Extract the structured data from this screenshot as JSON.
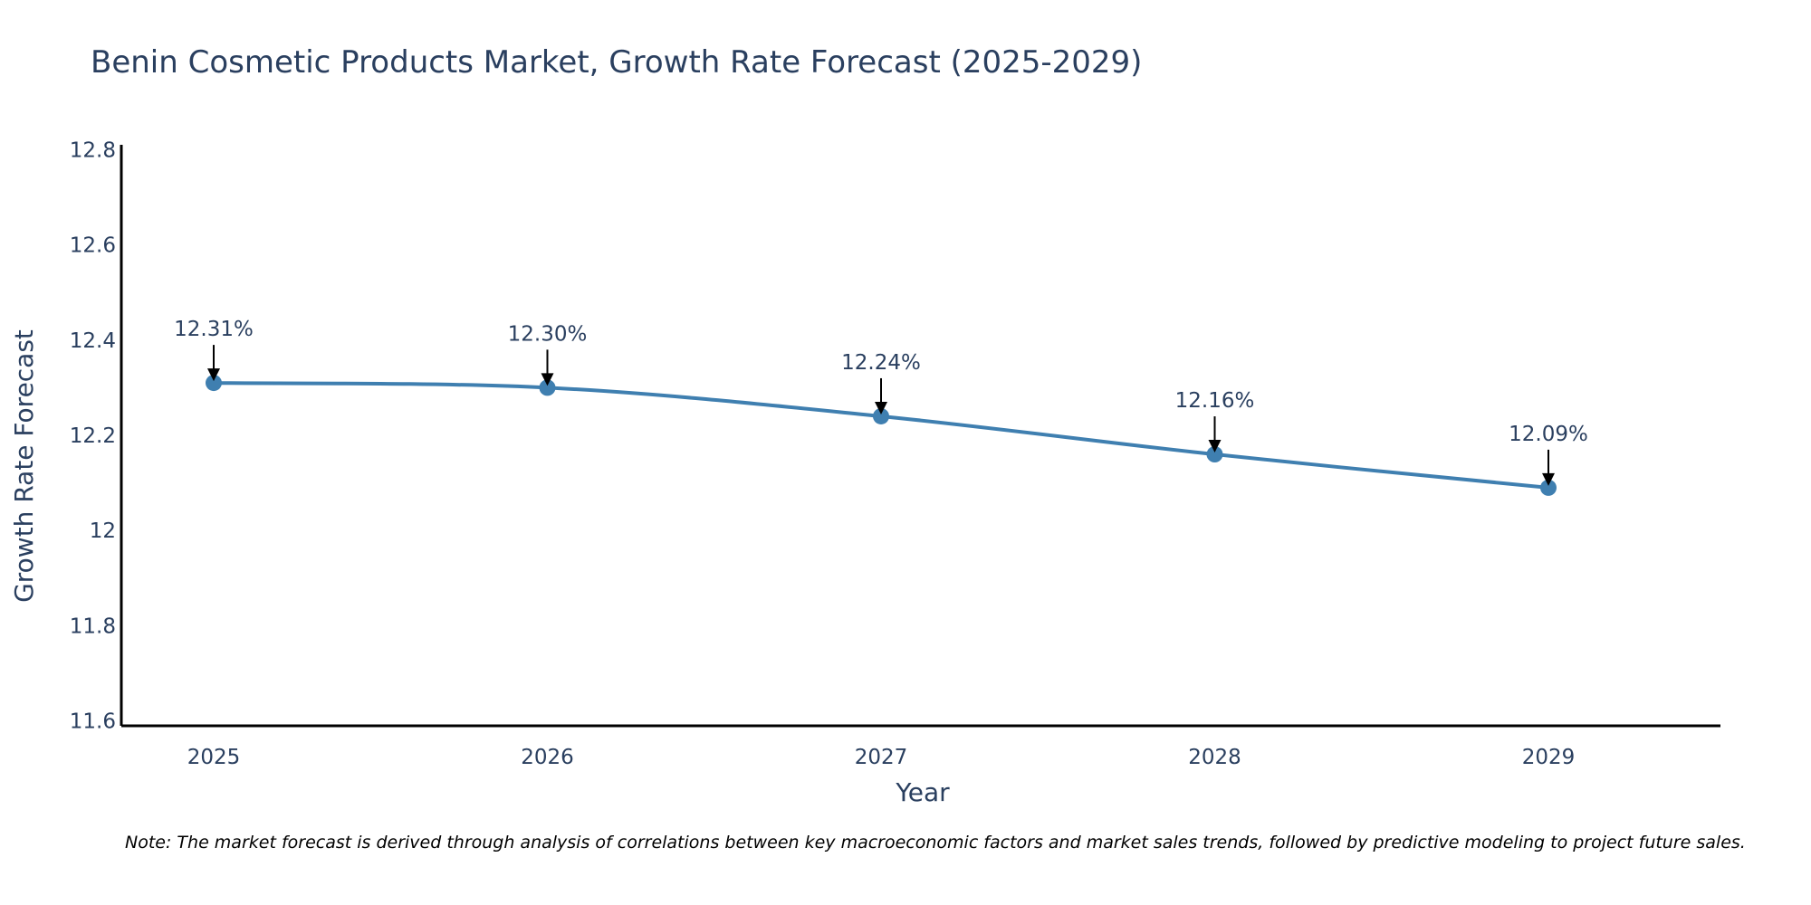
{
  "chart_data": {
    "type": "line",
    "title": "Benin Cosmetic Products Market, Growth Rate Forecast (2025-2029)",
    "xlabel": "Year",
    "ylabel": "Growth Rate Forecast",
    "categories": [
      "2025",
      "2026",
      "2027",
      "2028",
      "2029"
    ],
    "values": [
      12.31,
      12.3,
      12.24,
      12.16,
      12.09
    ],
    "data_labels": [
      "12.31%",
      "12.30%",
      "12.24%",
      "12.16%",
      "12.09%"
    ],
    "y_ticks": [
      11.6,
      11.8,
      12,
      12.2,
      12.4,
      12.6,
      12.8
    ],
    "y_tick_labels": [
      "11.6",
      "11.8",
      "12",
      "12.2",
      "12.4",
      "12.6",
      "12.8"
    ],
    "ylim": [
      11.59,
      12.81
    ],
    "grid": false,
    "line_shape": "spline",
    "colors": {
      "line": "#3f7fb0",
      "marker": "#3f7fb0",
      "arrow": "#000000",
      "axis": "#000000",
      "text": "#2a3f5f"
    }
  },
  "note": "Note: The market forecast is derived through analysis of correlations between key macroeconomic factors and market sales trends, followed by predictive modeling to project future sales."
}
